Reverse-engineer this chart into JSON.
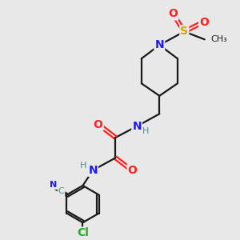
{
  "background_color": "#e8e8e8",
  "atom_colors": {
    "N": "#1a1aff",
    "O": "#ff2020",
    "S": "#ccaa00",
    "Cl": "#22aa22",
    "C_teal": "#4a9090",
    "C": "#1a1a1a"
  },
  "bond_lw": 1.6,
  "label_fontsize": 10,
  "label_fontsize_small": 8,
  "figsize": [
    3.0,
    3.0
  ],
  "dpi": 100,
  "xlim": [
    -0.5,
    8.0
  ],
  "ylim": [
    -0.5,
    9.5
  ]
}
